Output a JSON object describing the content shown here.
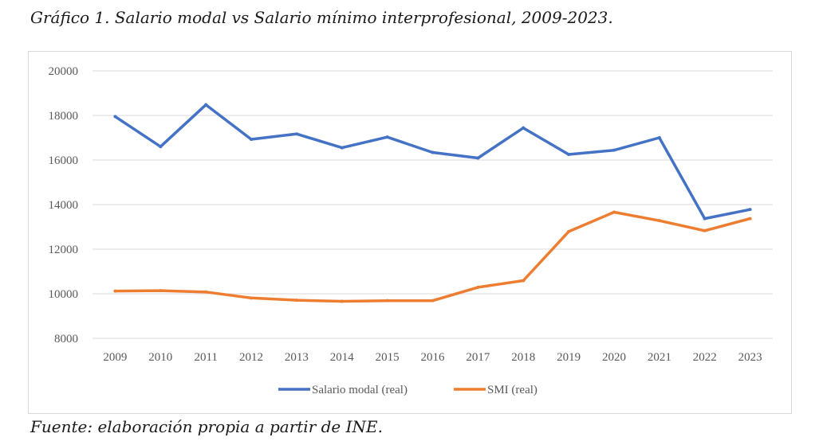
{
  "caption": {
    "title": "Gráfico 1. Salario modal vs Salario mínimo interprofesional, 2009-2023.",
    "source": "Fuente: elaboración propia a partir de INE."
  },
  "chart_data": {
    "type": "line",
    "title": "",
    "xlabel": "",
    "ylabel": "",
    "x": [
      "2009",
      "2010",
      "2011",
      "2012",
      "2013",
      "2014",
      "2015",
      "2016",
      "2017",
      "2018",
      "2019",
      "2020",
      "2021",
      "2022",
      "2023"
    ],
    "yticks": [
      8000,
      10000,
      12000,
      14000,
      16000,
      18000,
      20000
    ],
    "ylim": [
      8000,
      20000
    ],
    "grid": true,
    "legend_position": "bottom",
    "series": [
      {
        "name": "Salario modal (real)",
        "color": "#4472C4",
        "values": [
          17950,
          16600,
          18480,
          16930,
          17170,
          16550,
          17030,
          16340,
          16090,
          17440,
          16250,
          16440,
          17000,
          13370,
          13780
        ]
      },
      {
        "name": "SMI (real)",
        "color": "#ED7D31",
        "values": [
          10120,
          10140,
          10080,
          9810,
          9710,
          9660,
          9690,
          9690,
          10290,
          10590,
          12790,
          13660,
          13280,
          12830,
          13370
        ]
      }
    ]
  }
}
